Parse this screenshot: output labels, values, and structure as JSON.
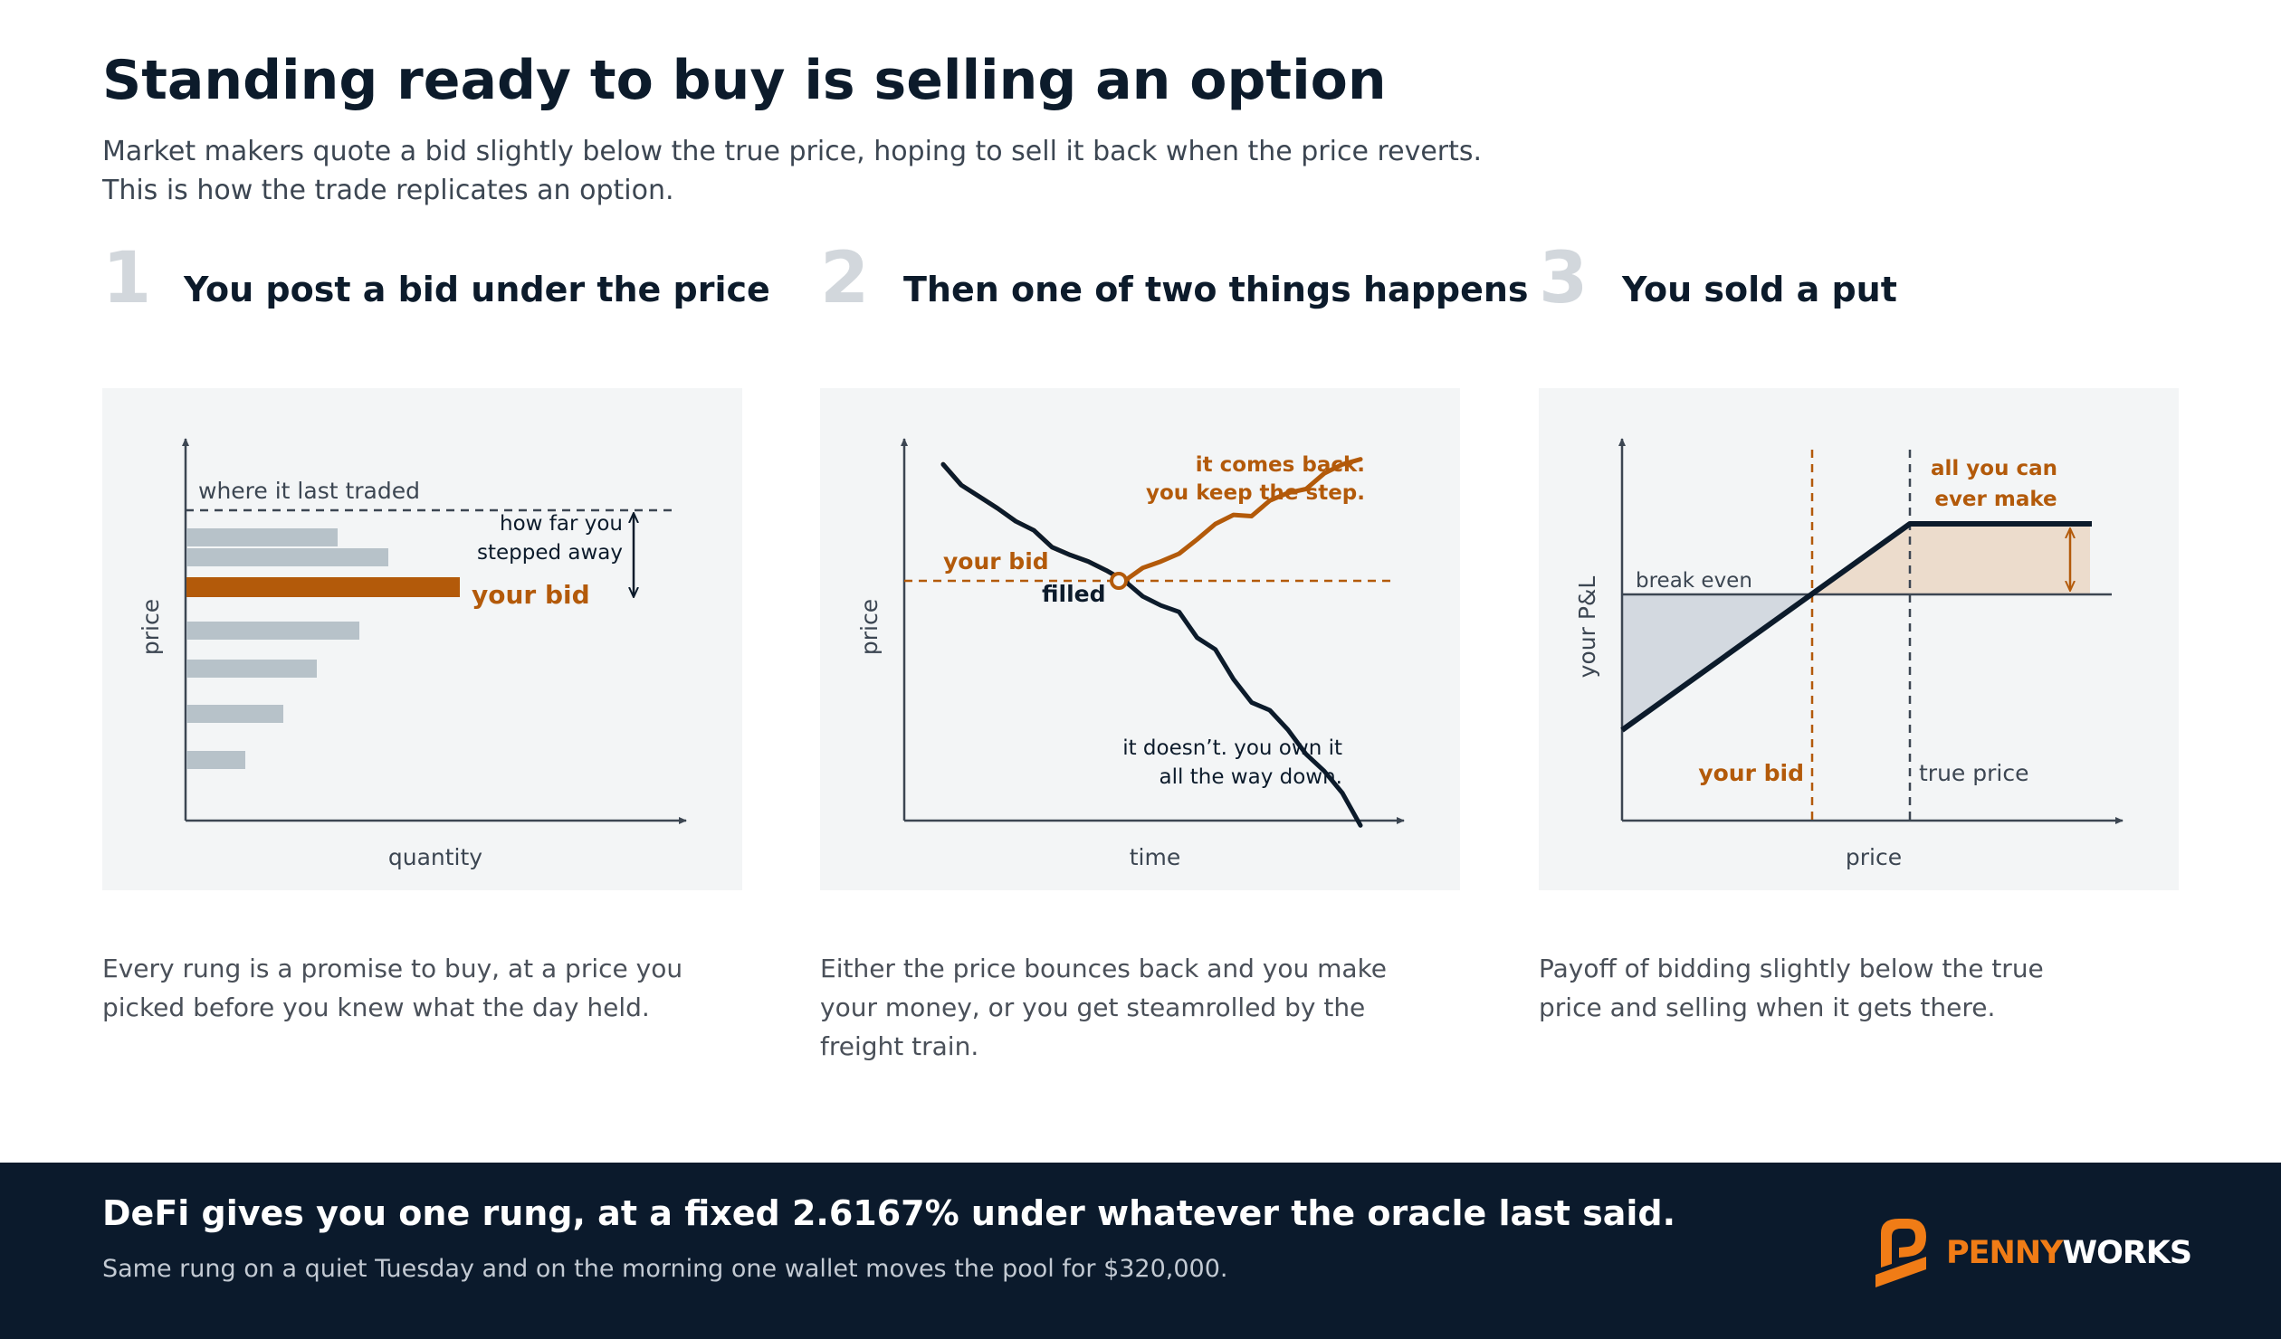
{
  "header": {
    "title": "Standing ready to buy is selling an option",
    "subtitle_line1": "Market makers quote a bid slightly below the true price, hoping to sell it back when the price reverts.",
    "subtitle_line2": "This is how the trade replicates an option."
  },
  "colors": {
    "accent": "#b35a0a",
    "ink": "#0c1b2b",
    "panel_bg": "#f3f5f6",
    "bar_grey": "#b7c2c9",
    "footer_bg": "#0b1a2c",
    "logo_orange": "#f07c16"
  },
  "steps": [
    {
      "number": "1",
      "title": "You post a bid under the price",
      "caption_line1": "Every rung is a promise to buy, at a price you",
      "caption_line2": "picked before you knew what the day held.",
      "caption_line3": ""
    },
    {
      "number": "2",
      "title": "Then one of two things happens",
      "caption_line1": "Either the price bounces back and you make",
      "caption_line2": "your money, or you get steamrolled by the",
      "caption_line3": "freight train."
    },
    {
      "number": "3",
      "title": "You sold a put",
      "caption_line1": "Payoff of bidding slightly below the true",
      "caption_line2": "price and selling when it gets there.",
      "caption_line3": ""
    }
  ],
  "panel1": {
    "y_label": "price",
    "x_label": "quantity",
    "last_traded_label": "where it last traded",
    "step_away_line1": "how far you",
    "step_away_line2": "stepped away",
    "your_bid_label": "your bid"
  },
  "panel2": {
    "y_label": "price",
    "x_label": "time",
    "your_bid_label": "your bid",
    "filled_label": "filled",
    "comes_back_line1": "it comes back.",
    "comes_back_line2": "you keep the step.",
    "doesnt_line1": "it doesn’t. you own it",
    "doesnt_line2": "all the way down."
  },
  "panel3": {
    "y_label": "your P&L",
    "x_label": "price",
    "break_even_label": "break even",
    "max_profit_line1": "all you can",
    "max_profit_line2": "ever make",
    "your_bid_label": "your bid",
    "true_price_label": "true price"
  },
  "footer": {
    "headline": "DeFi gives you one rung, at a fixed 2.6167% under whatever the oracle last said.",
    "subline": "Same rung on a quiet Tuesday and on the morning one wallet moves the pool for $320,000.",
    "logo_part1": "PENNY",
    "logo_part2": "WORKS",
    "logo_icon": "pennyworks-logo-icon"
  },
  "chart_data": [
    {
      "type": "bar",
      "orientation": "horizontal",
      "title": "You post a bid under the price",
      "xlabel": "quantity",
      "ylabel": "price",
      "categories": [
        "rung 1",
        "rung 2",
        "your bid",
        "rung 4",
        "rung 5",
        "rung 6",
        "rung 7"
      ],
      "values": [
        0.36,
        0.48,
        0.65,
        0.41,
        0.31,
        0.23,
        0.14
      ],
      "highlight": "your bid",
      "reference_line": "where it last traded"
    },
    {
      "type": "line",
      "title": "Then one of two things happens",
      "xlabel": "time",
      "ylabel": "price",
      "series": [
        {
          "name": "it comes back. you keep the step.",
          "y": [
            100,
            98.4,
            97.5,
            96.6,
            95.6,
            94.9,
            93.6,
            93.0,
            92.5,
            91.8,
            91.0,
            92.0,
            92.5,
            93.1,
            94.2,
            95.4,
            96.1,
            96.0,
            97.2,
            97.8,
            98.1,
            99.3,
            100.0,
            100.4
          ]
        },
        {
          "name": "it doesn’t. you own it all the way down.",
          "y": [
            100,
            98.4,
            97.5,
            96.6,
            95.6,
            94.9,
            93.6,
            93.0,
            92.5,
            91.8,
            91.0,
            89.8,
            89.1,
            88.6,
            86.6,
            85.7,
            83.4,
            81.6,
            81.0,
            79.5,
            77.6,
            76.3,
            74.6,
            72.1
          ]
        }
      ],
      "reference_line": "your bid"
    },
    {
      "type": "line",
      "title": "You sold a put",
      "xlabel": "price",
      "ylabel": "your P&L",
      "series": [
        {
          "name": "payoff",
          "x": [
            0,
            0.35,
            0.53,
            0.86
          ],
          "y": [
            -0.55,
            0,
            0.27,
            0.27
          ]
        }
      ],
      "annotations": [
        "break even",
        "all you can ever make",
        "your bid",
        "true price"
      ]
    }
  ]
}
